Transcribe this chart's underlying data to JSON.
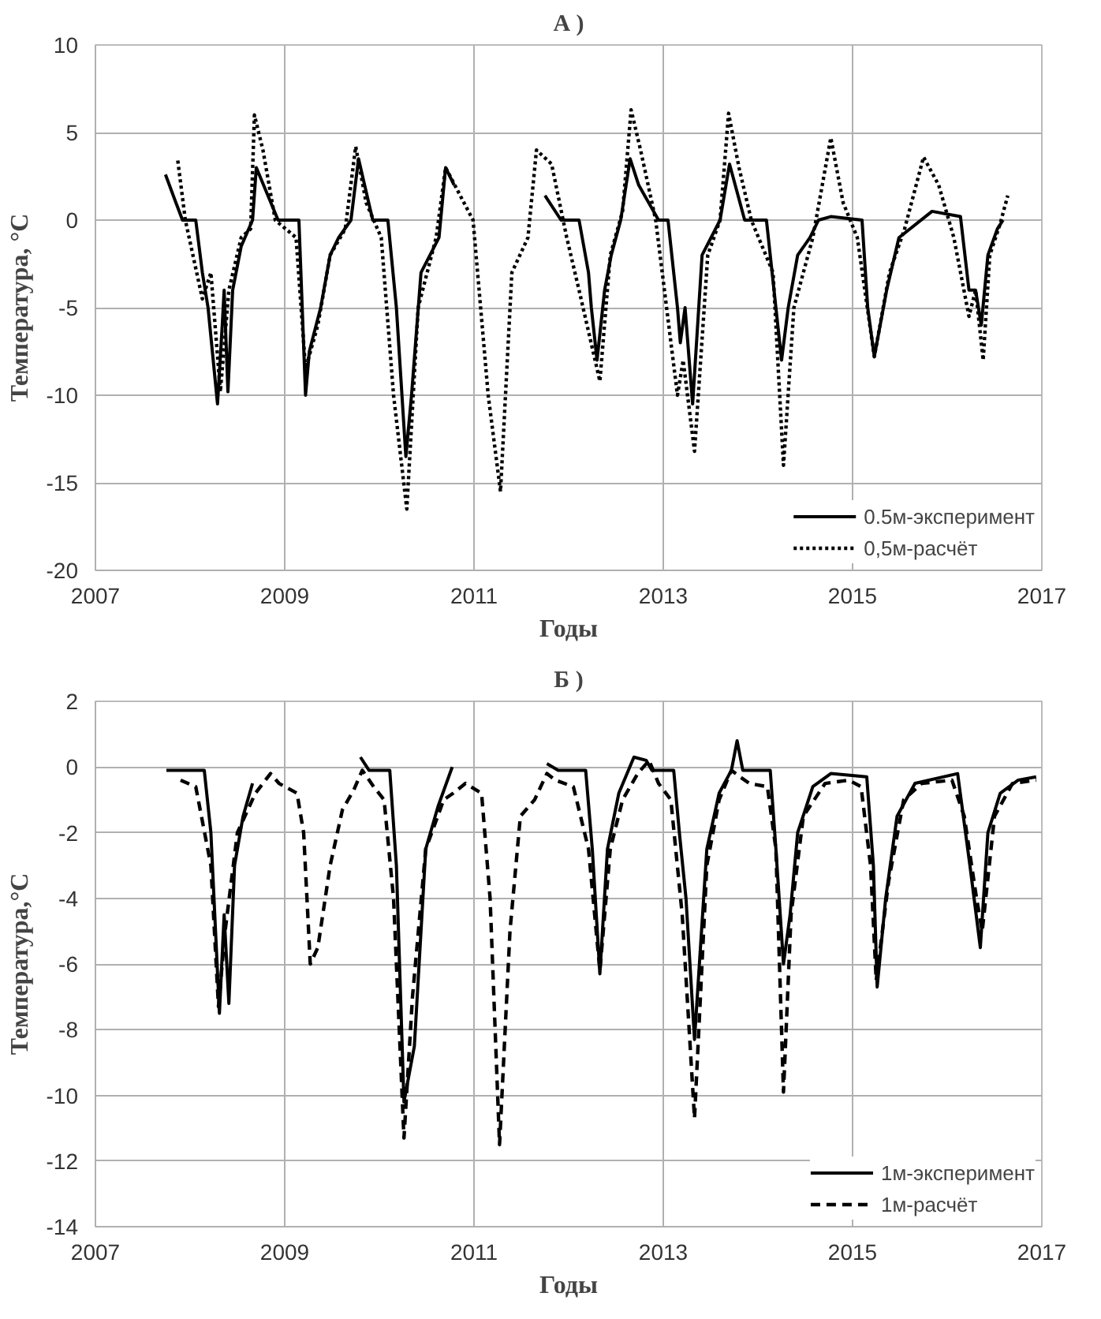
{
  "chart_data": [
    {
      "type": "line",
      "title": "А )",
      "xlabel": "Годы",
      "ylabel": "Температура, °C",
      "xlim": [
        2007,
        2017
      ],
      "xticks": [
        2007,
        2009,
        2011,
        2013,
        2015,
        2017
      ],
      "ylim": [
        -20,
        10
      ],
      "yticks": [
        -20,
        -15,
        -10,
        -5,
        0,
        5,
        10
      ],
      "grid": true,
      "legend": "bottom right",
      "series": [
        {
          "name": "0.5м-эксперимент",
          "color": "#000000",
          "line_style": "solid",
          "x": [
            2007.74,
            2007.85,
            2007.92,
            2008.06,
            2008.13,
            2008.19,
            2008.29,
            2008.34,
            2008.36,
            2008.4,
            2008.45,
            2008.54,
            2008.66,
            2008.7,
            2008.93,
            2009.15,
            2009.22,
            2009.26,
            2009.38,
            2009.48,
            2009.57,
            2009.7,
            2009.78,
            2009.93,
            2010.09,
            2010.18,
            2010.28,
            2010.34,
            2010.44,
            2010.63,
            2010.7,
            2010.79,
            2011.2,
            2011.75,
            2011.92,
            2012.11,
            2012.21,
            2012.24,
            2012.3,
            2012.38,
            2012.45,
            2012.55,
            2012.65,
            2012.74,
            2012.95,
            2013.05,
            2013.15,
            2013.18,
            2013.23,
            2013.31,
            2013.41,
            2013.6,
            2013.7,
            2013.86,
            2014.09,
            2014.19,
            2014.25,
            2014.32,
            2014.42,
            2014.55,
            2014.64,
            2014.77,
            2015.1,
            2015.16,
            2015.23,
            2015.36,
            2015.49,
            2015.84,
            2016.14,
            2016.23,
            2016.3,
            2016.36,
            2016.43,
            2016.53,
            2016.59
          ],
          "values": [
            2.6,
            1,
            0,
            0,
            -3,
            -5,
            -10.5,
            -6,
            -4,
            -9.8,
            -4,
            -1.5,
            0,
            3,
            0,
            0,
            -10,
            -7.5,
            -5,
            -2,
            -1,
            0,
            3.5,
            0,
            0,
            -5,
            -13.5,
            -10,
            -3,
            -1,
            3,
            2,
            null,
            1.4,
            0,
            0,
            -3,
            -5,
            -8,
            -4,
            -2,
            0,
            3.5,
            2,
            0,
            0,
            -5,
            -7,
            -5,
            -10.5,
            -2,
            0,
            3.2,
            0,
            0,
            -5,
            -8,
            -5,
            -2,
            -1,
            0,
            0.2,
            0,
            -5,
            -7.8,
            -4,
            -1,
            0.5,
            0.2,
            -4,
            -4,
            -6,
            -2,
            -0.5,
            0
          ]
        },
        {
          "name": "0,5м-расчёт",
          "color": "#000000",
          "line_style": "dotted",
          "x": [
            2007.87,
            2007.95,
            2008.13,
            2008.22,
            2008.32,
            2008.41,
            2008.54,
            2008.64,
            2008.68,
            2008.77,
            2008.9,
            2009.12,
            2009.22,
            2009.35,
            2009.48,
            2009.64,
            2009.75,
            2009.86,
            2010.02,
            2010.15,
            2010.29,
            2010.41,
            2010.6,
            2010.7,
            2010.99,
            2011.15,
            2011.28,
            2011.4,
            2011.57,
            2011.66,
            2011.82,
            2011.98,
            2012.11,
            2012.33,
            2012.44,
            2012.57,
            2012.66,
            2012.76,
            2012.92,
            2013.15,
            2013.21,
            2013.33,
            2013.47,
            2013.6,
            2013.69,
            2013.8,
            2013.93,
            2014.16,
            2014.27,
            2014.38,
            2014.58,
            2014.77,
            2014.9,
            2015.05,
            2015.23,
            2015.39,
            2015.55,
            2015.75,
            2015.91,
            2016.07,
            2016.23,
            2016.3,
            2016.38,
            2016.45,
            2016.56,
            2016.64
          ],
          "values": [
            3.4,
            0,
            -4.5,
            -3,
            -9.8,
            -4,
            -1,
            -0.5,
            6,
            4,
            0,
            -1,
            -8.5,
            -6,
            -2,
            -0.5,
            4.2,
            1,
            -1,
            -10,
            -16.5,
            -5,
            -1,
            3,
            0,
            -10,
            -15.5,
            -3,
            -1,
            4,
            3.2,
            -1,
            -4,
            -9.2,
            -2,
            0.5,
            6.3,
            4,
            0,
            -10,
            -8,
            -13.2,
            -2,
            0,
            6.1,
            3,
            0,
            -3,
            -14,
            -5,
            -1,
            4.7,
            1,
            -1,
            -7.8,
            -3,
            -0.5,
            3.6,
            2,
            -1,
            -5.5,
            -4,
            -8,
            -2,
            -0.2,
            1.4
          ]
        }
      ]
    },
    {
      "type": "line",
      "title": "Б )",
      "xlabel": "Годы",
      "ylabel": "Температура,°C",
      "xlim": [
        2007,
        2017
      ],
      "xticks": [
        2007,
        2009,
        2011,
        2013,
        2015,
        2017
      ],
      "ylim": [
        -14,
        2
      ],
      "yticks": [
        -14,
        -12,
        -10,
        -8,
        -6,
        -4,
        -2,
        0,
        2
      ],
      "grid": true,
      "legend": "bottom right",
      "series": [
        {
          "name": "1м-эксперимент",
          "color": "#000000",
          "line_style": "solid",
          "x": [
            2007.75,
            2008.15,
            2008.22,
            2008.31,
            2008.36,
            2008.41,
            2008.47,
            2008.56,
            2008.66,
            2009.2,
            2009.8,
            2009.89,
            2010.11,
            2010.18,
            2010.26,
            2010.37,
            2010.49,
            2010.62,
            2010.77,
            2011.3,
            2011.77,
            2011.89,
            2012.18,
            2012.25,
            2012.33,
            2012.41,
            2012.53,
            2012.69,
            2012.82,
            2012.88,
            2013.11,
            2013.17,
            2013.24,
            2013.33,
            2013.46,
            2013.59,
            2013.72,
            2013.78,
            2013.84,
            2014.13,
            2014.19,
            2014.27,
            2014.34,
            2014.42,
            2014.58,
            2014.77,
            2015.15,
            2015.22,
            2015.26,
            2015.35,
            2015.47,
            2015.66,
            2016.11,
            2016.24,
            2016.35,
            2016.43,
            2016.56,
            2016.75,
            2016.94
          ],
          "values": [
            -0.1,
            -0.1,
            -2,
            -7.5,
            -4.5,
            -7.2,
            -3,
            -1.5,
            -0.5,
            null,
            0.3,
            -0.1,
            -0.1,
            -3,
            -10.2,
            -8.5,
            -2.5,
            -1.2,
            0,
            null,
            0.1,
            -0.1,
            -0.1,
            -2.5,
            -6.3,
            -2.5,
            -0.8,
            0.3,
            0.2,
            -0.1,
            -0.1,
            -2,
            -4,
            -8.3,
            -2.5,
            -0.8,
            -0.1,
            0.8,
            -0.1,
            -0.1,
            -2.5,
            -6,
            -4.5,
            -2,
            -0.6,
            -0.2,
            -0.3,
            -3,
            -6.7,
            -4,
            -1.5,
            -0.5,
            -0.2,
            -3,
            -5.5,
            -2,
            -0.8,
            -0.4,
            -0.3
          ]
        },
        {
          "name": "1м-расчёт",
          "color": "#000000",
          "line_style": "dashed",
          "x": [
            2007.9,
            2008.06,
            2008.22,
            2008.3,
            2008.37,
            2008.5,
            2008.69,
            2008.85,
            2008.94,
            2009.13,
            2009.2,
            2009.27,
            2009.35,
            2009.48,
            2009.61,
            2009.73,
            2009.82,
            2009.94,
            2010.05,
            2010.15,
            2010.26,
            2010.35,
            2010.49,
            2010.68,
            2010.78,
            2010.91,
            2011.08,
            2011.17,
            2011.27,
            2011.38,
            2011.49,
            2011.64,
            2011.77,
            2011.86,
            2012.05,
            2012.21,
            2012.33,
            2012.44,
            2012.57,
            2012.73,
            2012.85,
            2012.95,
            2013.08,
            2013.2,
            2013.33,
            2013.46,
            2013.59,
            2013.72,
            2013.81,
            2013.91,
            2014.1,
            2014.19,
            2014.27,
            2014.35,
            2014.48,
            2014.71,
            2014.96,
            2015.09,
            2015.19,
            2015.25,
            2015.38,
            2015.54,
            2015.73,
            2016.05,
            2016.18,
            2016.31,
            2016.37,
            2016.5,
            2016.69,
            2016.94
          ],
          "values": [
            -0.4,
            -0.6,
            -3,
            -7.3,
            -5,
            -2,
            -0.8,
            -0.2,
            -0.5,
            -0.8,
            -2,
            -6,
            -5.5,
            -3,
            -1.3,
            -0.7,
            -0.1,
            -0.6,
            -1,
            -4,
            -11.3,
            -7,
            -2.5,
            -1,
            -0.8,
            -0.5,
            -0.8,
            -4,
            -11.5,
            -5,
            -1.5,
            -1,
            -0.2,
            -0.4,
            -0.6,
            -2.5,
            -6.2,
            -2.5,
            -1,
            -0.2,
            0.2,
            -0.5,
            -1,
            -4.5,
            -10.7,
            -3,
            -1,
            -0.1,
            -0.3,
            -0.5,
            -0.6,
            -2.5,
            -9.9,
            -4.5,
            -1.5,
            -0.5,
            -0.4,
            -0.6,
            -3,
            -6.5,
            -3.5,
            -1,
            -0.5,
            -0.4,
            -1.5,
            -4,
            -5,
            -1.5,
            -0.5,
            -0.4
          ]
        }
      ]
    }
  ]
}
